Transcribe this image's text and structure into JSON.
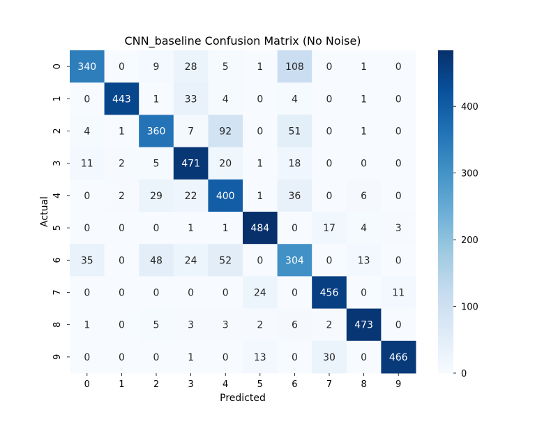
{
  "chart_data": {
    "type": "heatmap",
    "title": "CNN_baseline Confusion Matrix (No Noise)",
    "xlabel": "Predicted",
    "ylabel": "Actual",
    "x_categories": [
      "0",
      "1",
      "2",
      "3",
      "4",
      "5",
      "6",
      "7",
      "8",
      "9"
    ],
    "y_categories": [
      "0",
      "1",
      "2",
      "3",
      "4",
      "5",
      "6",
      "7",
      "8",
      "9"
    ],
    "values": [
      [
        340,
        0,
        9,
        28,
        5,
        1,
        108,
        0,
        1,
        0
      ],
      [
        0,
        443,
        1,
        33,
        4,
        0,
        4,
        0,
        1,
        0
      ],
      [
        4,
        1,
        360,
        7,
        92,
        0,
        51,
        0,
        1,
        0
      ],
      [
        11,
        2,
        5,
        471,
        20,
        1,
        18,
        0,
        0,
        0
      ],
      [
        0,
        2,
        29,
        22,
        400,
        1,
        36,
        0,
        6,
        0
      ],
      [
        0,
        0,
        0,
        1,
        1,
        484,
        0,
        17,
        4,
        3
      ],
      [
        35,
        0,
        48,
        24,
        52,
        0,
        304,
        0,
        13,
        0
      ],
      [
        0,
        0,
        0,
        0,
        0,
        24,
        0,
        456,
        0,
        11
      ],
      [
        1,
        0,
        5,
        3,
        3,
        2,
        6,
        2,
        473,
        0
      ],
      [
        0,
        0,
        0,
        1,
        0,
        13,
        0,
        30,
        0,
        466
      ]
    ],
    "colormap": "Blues",
    "vmin": 0,
    "vmax": 484,
    "colorbar_ticks": [
      "0",
      "100",
      "200",
      "300",
      "400"
    ],
    "colorbar_tick_values": [
      0,
      100,
      200,
      300,
      400
    ]
  }
}
